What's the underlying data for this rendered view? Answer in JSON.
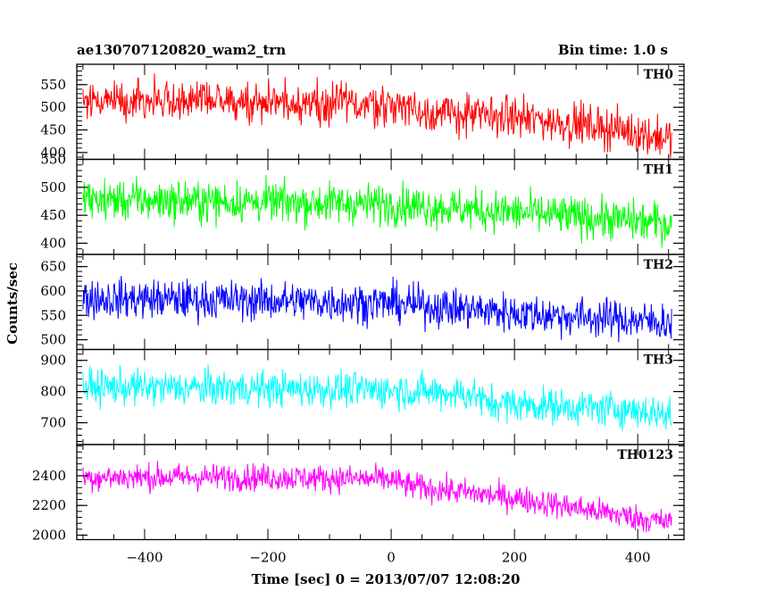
{
  "header": {
    "title": "ae130707120820_wam2_trn",
    "bin_time": "Bin time: 1.0 s"
  },
  "chart_data": {
    "type": "line",
    "xlabel": "Time [sec] 0 = 2013/07/07 12:08:20",
    "ylabel": "Counts/sec",
    "xlim": [
      -510,
      475
    ],
    "x_range": [
      -500,
      455
    ],
    "x_ticks": [
      -400,
      -200,
      0,
      200,
      400
    ],
    "panels": [
      {
        "name": "TH0",
        "color": "#ff0000",
        "ylim": [
          385,
          595
        ],
        "y_ticks": [
          400,
          450,
          500,
          550
        ],
        "trend": [
          [
            -500,
            518
          ],
          [
            -200,
            512
          ],
          [
            0,
            506
          ],
          [
            30,
            505
          ],
          [
            40,
            490
          ],
          [
            200,
            478
          ],
          [
            350,
            455
          ],
          [
            455,
            430
          ]
        ],
        "noise": 22
      },
      {
        "name": "TH1",
        "color": "#00ff00",
        "ylim": [
          380,
          550
        ],
        "y_ticks": [
          400,
          450,
          500,
          550
        ],
        "trend": [
          [
            -500,
            478
          ],
          [
            0,
            470
          ],
          [
            200,
            455
          ],
          [
            455,
            435
          ]
        ],
        "noise": 18
      },
      {
        "name": "TH2",
        "color": "#0000ff",
        "ylim": [
          480,
          675
        ],
        "y_ticks": [
          500,
          550,
          600,
          650
        ],
        "trend": [
          [
            -500,
            585
          ],
          [
            -200,
            580
          ],
          [
            0,
            575
          ],
          [
            200,
            555
          ],
          [
            455,
            535
          ]
        ],
        "noise": 20
      },
      {
        "name": "TH3",
        "color": "#00ffff",
        "ylim": [
          630,
          935
        ],
        "y_ticks": [
          700,
          800,
          900
        ],
        "trend": [
          [
            -500,
            815
          ],
          [
            0,
            805
          ],
          [
            140,
            790
          ],
          [
            150,
            765
          ],
          [
            400,
            740
          ],
          [
            455,
            725
          ]
        ],
        "noise": 28
      },
      {
        "name": "TH0123",
        "color": "#ff00ff",
        "ylim": [
          1970,
          2610
        ],
        "y_ticks": [
          2000,
          2200,
          2400
        ],
        "trend": [
          [
            -500,
            2390
          ],
          [
            -200,
            2390
          ],
          [
            0,
            2375
          ],
          [
            30,
            2330
          ],
          [
            200,
            2250
          ],
          [
            455,
            2080
          ]
        ],
        "noise": 45
      }
    ]
  }
}
